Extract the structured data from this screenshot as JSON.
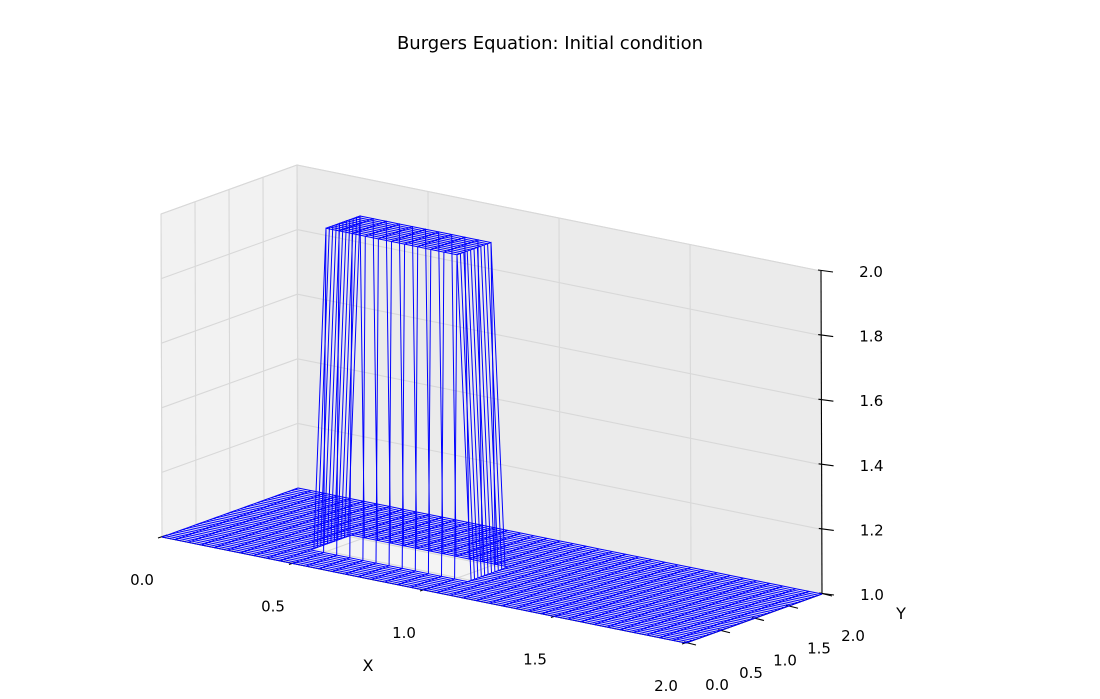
{
  "chart_data": {
    "type": "wireframe-3d",
    "title": "Burgers Equation: Initial condition",
    "xlabel": "X",
    "ylabel": "Y",
    "zlabel": "",
    "xlim": [
      0,
      2
    ],
    "ylim": [
      0,
      2
    ],
    "zlim": [
      1,
      2
    ],
    "xticks": [
      "0.0",
      "0.5",
      "1.0",
      "1.5",
      "2.0"
    ],
    "yticks": [
      "0.0",
      "0.5",
      "1.0",
      "1.5",
      "2.0"
    ],
    "zticks": [
      "1.0",
      "1.2",
      "1.4",
      "1.6",
      "1.8",
      "2.0"
    ],
    "grid": true,
    "wire_color": "#0000ff",
    "surface": {
      "x_range": [
        0,
        2
      ],
      "y_range": [
        0,
        2
      ],
      "n_points": 41,
      "base_value": 1.0,
      "raised_value": 2.0,
      "raised_region": {
        "x": [
          0.5,
          1.0
        ],
        "y": [
          0.5,
          1.0
        ]
      }
    }
  }
}
